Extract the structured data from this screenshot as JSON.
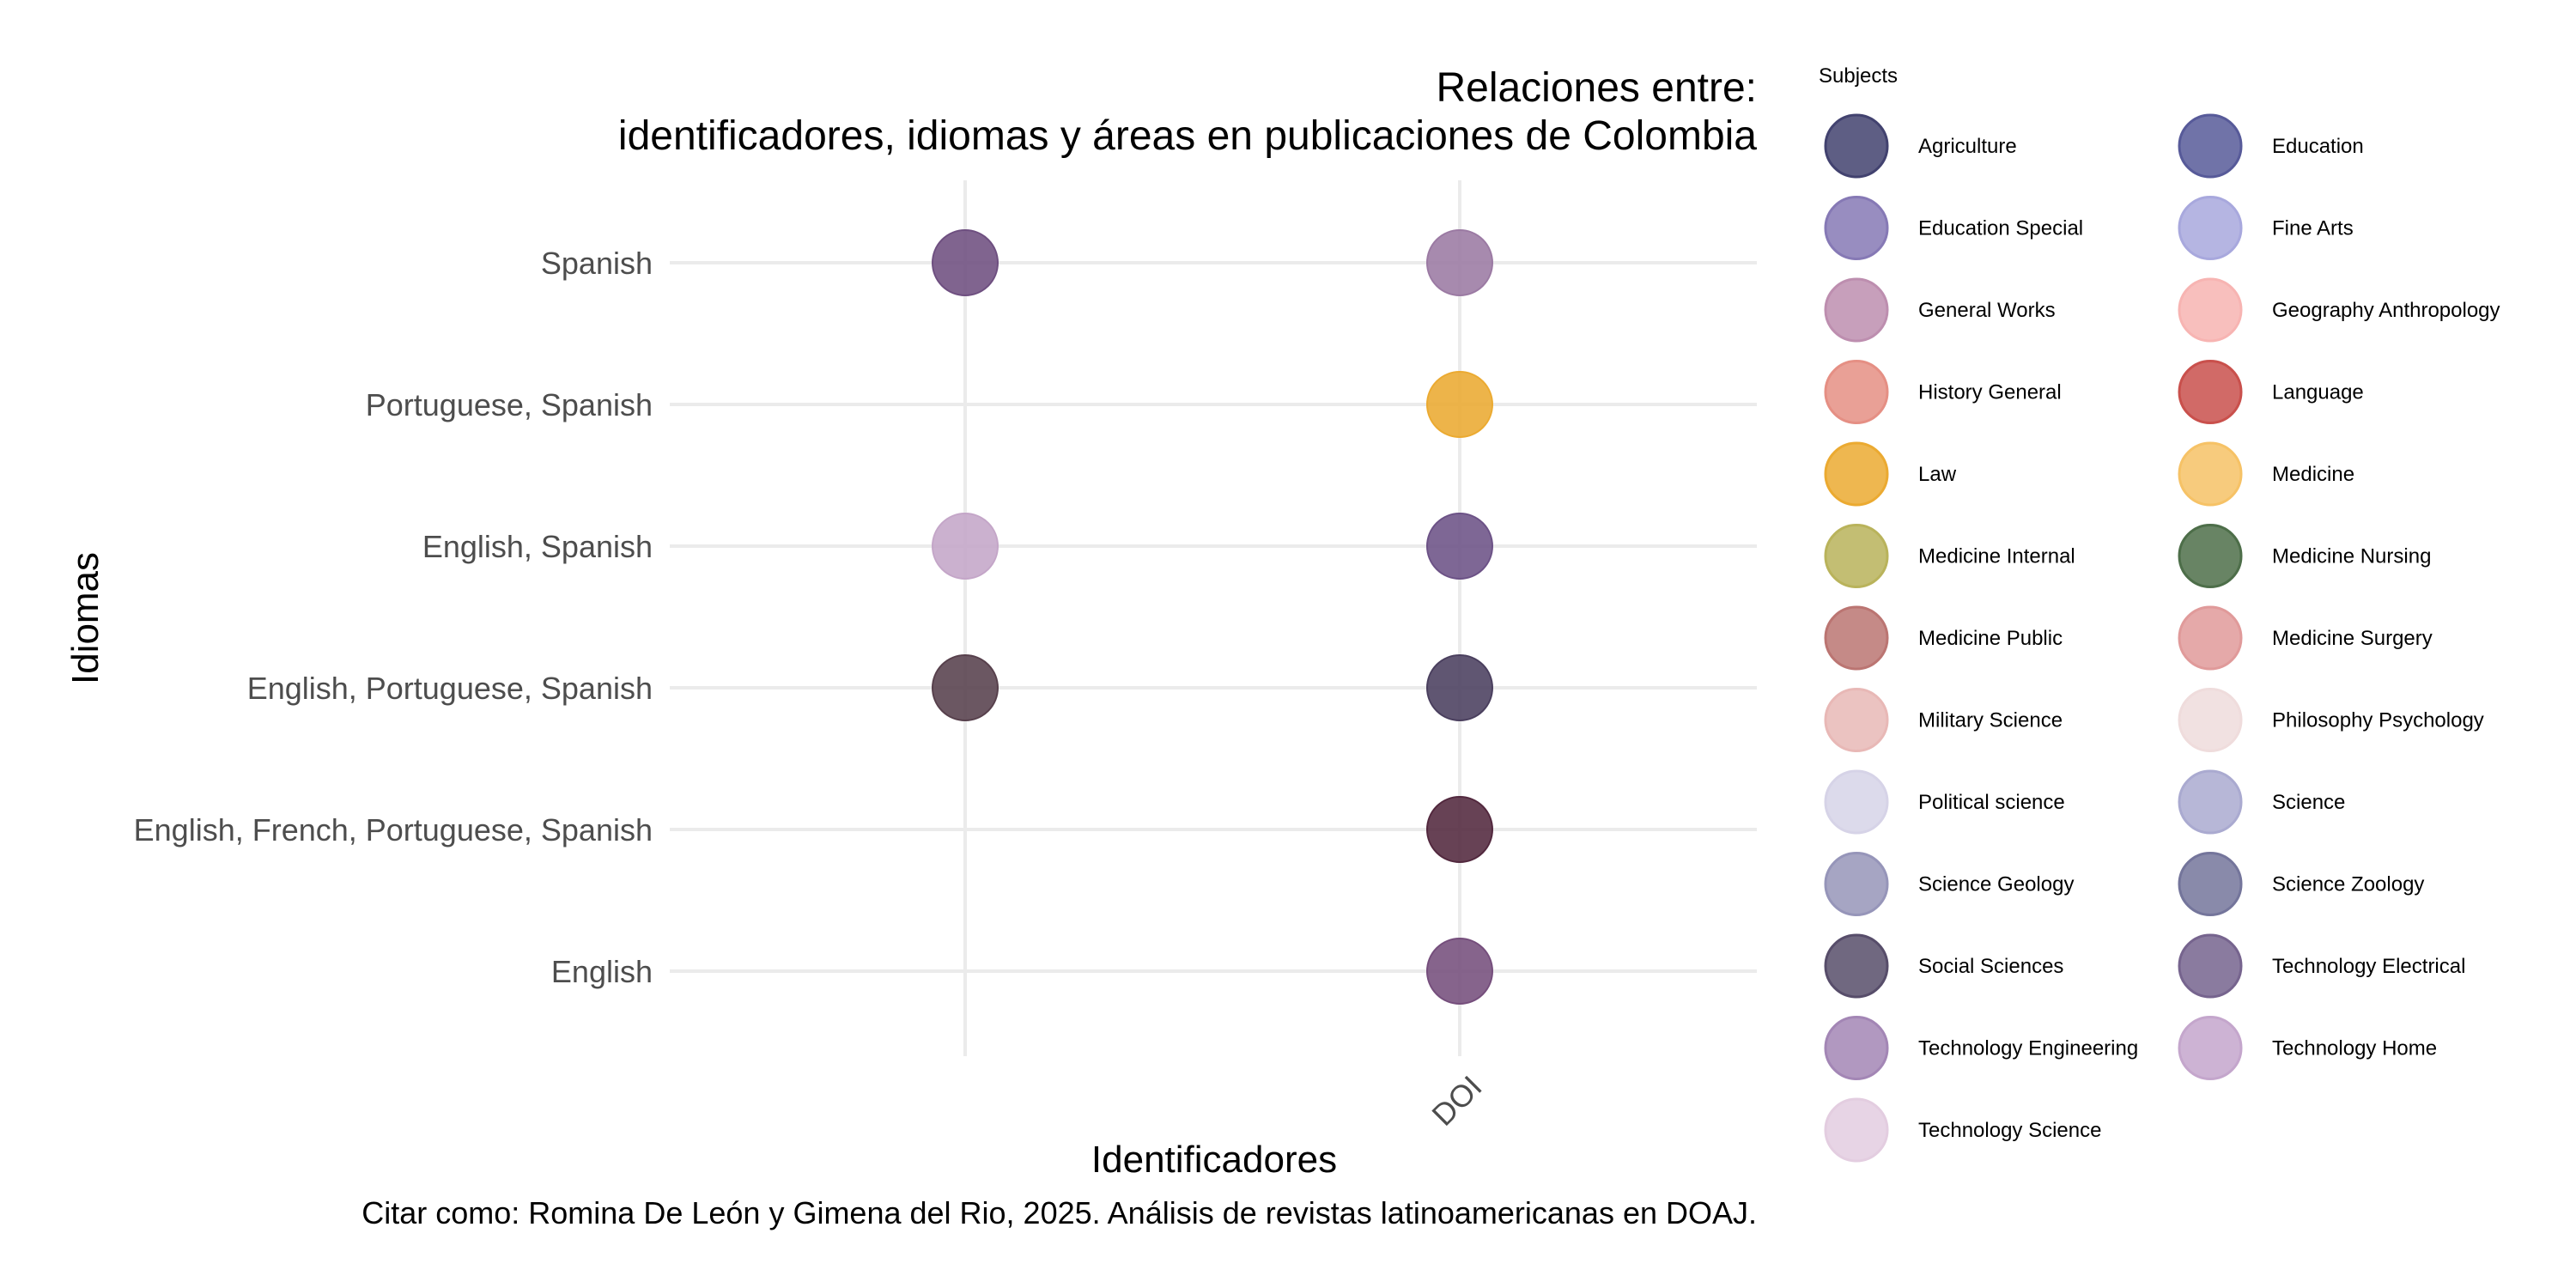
{
  "chart_data": {
    "type": "scatter",
    "title": "Relaciones entre:",
    "subtitle": "identificadores, idiomas y áreas en publicaciones de Colombia",
    "xlabel": "Identificadores",
    "ylabel": "Idiomas",
    "caption": "Citar como: Romina De León y Gimena del Rio, 2025. Análisis de revistas latinoamericanas en DOAJ.",
    "x_categories": [
      "",
      "DOI"
    ],
    "y_categories": [
      "Spanish",
      "Portuguese, Spanish",
      "English, Spanish",
      "English, Portuguese, Spanish",
      "English, French, Portuguese, Spanish",
      "English"
    ],
    "points": [
      {
        "x": "",
        "y": "Spanish",
        "color": "#6e4f80"
      },
      {
        "x": "DOI",
        "y": "Spanish",
        "color": "#9b7aa3"
      },
      {
        "x": "DOI",
        "y": "Portuguese, Spanish",
        "color": "#ebaa31"
      },
      {
        "x": "",
        "y": "English, Spanish",
        "color": "#c4a6c8"
      },
      {
        "x": "DOI",
        "y": "English, Spanish",
        "color": "#6c5286"
      },
      {
        "x": "",
        "y": "English, Portuguese, Spanish",
        "color": "#57404c"
      },
      {
        "x": "DOI",
        "y": "English, Portuguese, Spanish",
        "color": "#4a3f5e"
      },
      {
        "x": "DOI",
        "y": "English, French, Portuguese, Spanish",
        "color": "#52283e"
      },
      {
        "x": "DOI",
        "y": "English",
        "color": "#754e7c"
      }
    ],
    "legend": {
      "title": "Subjects",
      "position": "right",
      "columns": 2,
      "items": [
        {
          "label": "Agriculture",
          "color": "#42426f"
        },
        {
          "label": "Education",
          "color": "#575a99"
        },
        {
          "label": "Education Special",
          "color": "#8679b5"
        },
        {
          "label": "Fine Arts",
          "color": "#a8a8dd"
        },
        {
          "label": "General Works",
          "color": "#bd8eaf"
        },
        {
          "label": "Geography Anthropology",
          "color": "#f7b4b2"
        },
        {
          "label": "History General",
          "color": "#e58f84"
        },
        {
          "label": "Language",
          "color": "#c9504c"
        },
        {
          "label": "Law",
          "color": "#ebaa31"
        },
        {
          "label": "Medicine",
          "color": "#f6c266"
        },
        {
          "label": "Medicine Internal",
          "color": "#b9b35b"
        },
        {
          "label": "Medicine Nursing",
          "color": "#4d6e49"
        },
        {
          "label": "Medicine Public",
          "color": "#bb7572"
        },
        {
          "label": "Medicine Surgery",
          "color": "#e09a9a"
        },
        {
          "label": "Military Science",
          "color": "#e8b8b6"
        },
        {
          "label": "Philosophy Psychology",
          "color": "#efdcdc"
        },
        {
          "label": "Political science",
          "color": "#d6d3e7"
        },
        {
          "label": "Science",
          "color": "#aaaad0"
        },
        {
          "label": "Science Geology",
          "color": "#9695b9"
        },
        {
          "label": "Science Zoology",
          "color": "#74759b"
        },
        {
          "label": "Social Sciences",
          "color": "#574d6a"
        },
        {
          "label": "Technology Electrical",
          "color": "#76648e"
        },
        {
          "label": "Technology Engineering",
          "color": "#a386b5"
        },
        {
          "label": "Technology Home",
          "color": "#c4a6cc"
        },
        {
          "label": "Technology Science",
          "color": "#e3cde0"
        }
      ]
    }
  }
}
